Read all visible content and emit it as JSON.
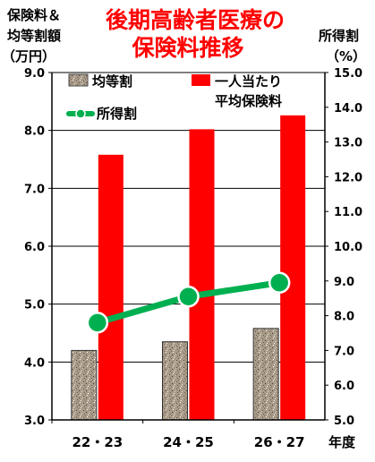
{
  "chart_data": {
    "type": "bar",
    "title_lines": [
      "後期高齢者医療の",
      "保険料推移"
    ],
    "y_left_label_lines": [
      "保険料＆",
      "均等割額",
      "（万円）"
    ],
    "y_right_label_lines": [
      "所得割",
      "（%）"
    ],
    "x_unit_label": "年度",
    "categories": [
      "22・23",
      "24・25",
      "26・27"
    ],
    "ylim_left": [
      3.0,
      9.0
    ],
    "ylim_right": [
      5.0,
      15.0
    ],
    "y_left_ticks": [
      "3.0",
      "4.0",
      "5.0",
      "6.0",
      "7.0",
      "8.0",
      "9.0"
    ],
    "y_right_ticks": [
      "5.0",
      "6.0",
      "7.0",
      "8.0",
      "9.0",
      "10.0",
      "11.0",
      "12.0",
      "13.0",
      "14.0",
      "15.0"
    ],
    "grid": true,
    "series": [
      {
        "name": "均等割",
        "kind": "bar",
        "axis": "left",
        "values": [
          4.2,
          4.35,
          4.58
        ],
        "color": "#a89a88"
      },
      {
        "name": "一人当たり平均保険料",
        "kind": "bar",
        "axis": "left",
        "values": [
          7.58,
          8.02,
          8.26
        ],
        "color": "#ff0000"
      },
      {
        "name": "所得割",
        "kind": "line",
        "axis": "right",
        "values": [
          7.8,
          8.55,
          8.95
        ],
        "color": "#00b050"
      }
    ],
    "legend": {
      "kintou": "均等割",
      "avg_line1": "一人当たり",
      "avg_line2": "平均保険料",
      "shotoku": "所得割"
    }
  }
}
